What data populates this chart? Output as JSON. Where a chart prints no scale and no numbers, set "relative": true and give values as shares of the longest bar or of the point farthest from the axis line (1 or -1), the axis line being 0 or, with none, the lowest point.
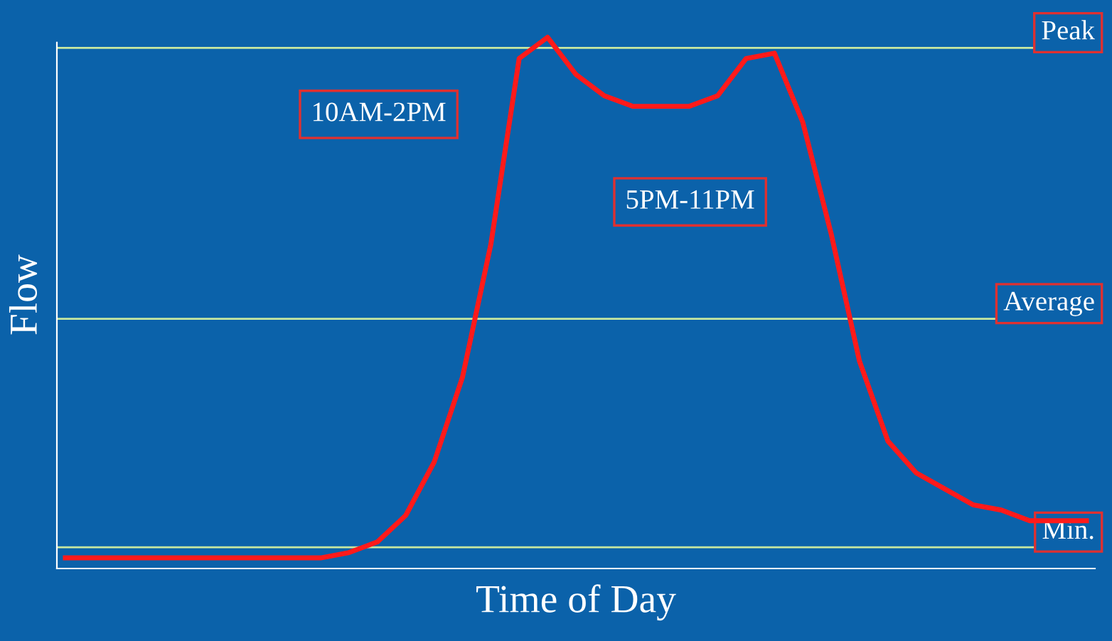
{
  "chart_data": {
    "type": "line",
    "relative": true,
    "xlabel": "Time of Day",
    "ylabel": "Flow",
    "categories": [
      null,
      null,
      null,
      null,
      null,
      null,
      null,
      null,
      null,
      null,
      null,
      null,
      null,
      null,
      null,
      null,
      null,
      null,
      null,
      null,
      null,
      null,
      null,
      null,
      null,
      null,
      null,
      null,
      null,
      null,
      null,
      null,
      null,
      null,
      null,
      null,
      null
    ],
    "series": [
      {
        "color": "#ff1a1a",
        "values": [
          0.02,
          0.02,
          0.02,
          0.02,
          0.02,
          0.02,
          0.02,
          0.02,
          0.02,
          0.02,
          0.03,
          0.05,
          0.1,
          0.2,
          0.36,
          0.61,
          0.96,
          1.0,
          0.93,
          0.89,
          0.87,
          0.87,
          0.87,
          0.89,
          0.96,
          0.97,
          0.84,
          0.63,
          0.39,
          0.24,
          0.18,
          0.15,
          0.12,
          0.11,
          0.09,
          0.09,
          0.09
        ]
      }
    ],
    "ref_lines": [
      {
        "axis": "y",
        "value": 0.98,
        "label": "Peak",
        "color": "#c8e8a0"
      },
      {
        "axis": "y",
        "value": 0.47,
        "label": "Average",
        "color": "#c8e8a0"
      },
      {
        "axis": "y",
        "value": 0.04,
        "label": "Min.",
        "color": "#c8e8a0"
      }
    ],
    "annotations": [
      "10AM-2PM",
      "5PM-11PM"
    ],
    "grid": false,
    "legend": false,
    "tick_labels": false,
    "marker": "none",
    "line_style": "solid"
  }
}
